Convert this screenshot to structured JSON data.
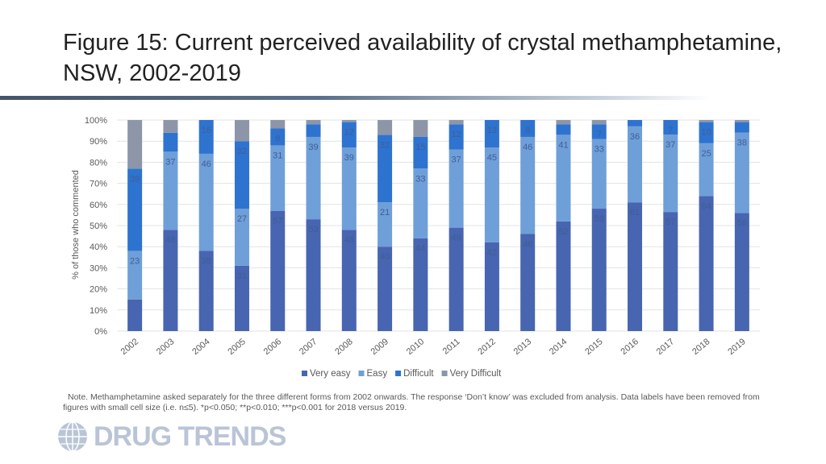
{
  "header": {
    "title": "Figure 15: Current perceived availability of crystal methamphetamine, NSW, 2002-2019"
  },
  "note": {
    "text": "Note. Methamphetamine asked separately for the three different forms from 2002 onwards. The response ‘Don’t know’ was excluded from analysis. Data labels have been removed from figures with small cell size (i.e. n≤5).  *p<0.050; **p<0.010; ***p<0.001 for 2018 versus 2019."
  },
  "logo": {
    "text": "DRUG TRENDS",
    "icon": "globe-icon"
  },
  "colors": {
    "very_easy": "#4765b0",
    "easy": "#6f9fd8",
    "difficult": "#2e73cf",
    "very_difficult": "#8c96a8",
    "label": "#3f5e98",
    "axis_text": "#595959",
    "grid": "#e3e3e3"
  },
  "chart_data": {
    "type": "bar",
    "stacked": true,
    "categories": [
      "2002",
      "2003",
      "2004",
      "2005",
      "2006",
      "2007",
      "2008",
      "2009",
      "2010",
      "2011",
      "2012",
      "2013",
      "2014",
      "2015",
      "2016",
      "2017",
      "2018",
      "2019"
    ],
    "ylabel": "% of those who commented",
    "xlabel": "",
    "ylim": [
      0,
      100
    ],
    "yticks": [
      "0%",
      "10%",
      "20%",
      "30%",
      "40%",
      "50%",
      "60%",
      "70%",
      "80%",
      "90%",
      "100%"
    ],
    "legend_position": "bottom",
    "series": [
      {
        "name": "Very easy",
        "color": "#4765b0",
        "values": [
          15,
          48,
          38,
          31,
          57,
          53,
          48,
          40,
          44,
          49,
          42,
          46,
          52,
          58,
          61,
          57,
          64,
          56
        ],
        "labels": [
          "",
          "48",
          "38",
          "31",
          "57",
          "53",
          "48",
          "40",
          "44",
          "49",
          "42",
          "46",
          "52",
          "58",
          "61",
          "57",
          "64",
          "56"
        ]
      },
      {
        "name": "Easy",
        "color": "#6f9fd8",
        "values": [
          23,
          37,
          46,
          27,
          31,
          39,
          39,
          21,
          33,
          37,
          45,
          46,
          41,
          33,
          36,
          37,
          25,
          38
        ],
        "labels": [
          "23",
          "37",
          "46",
          "27",
          "31",
          "39",
          "39",
          "21",
          "33",
          "37",
          "45",
          "46",
          "41",
          "33",
          "36",
          "37",
          "25",
          "38"
        ]
      },
      {
        "name": "Difficult",
        "color": "#2e73cf",
        "values": [
          39,
          9,
          16,
          32,
          8,
          6,
          12,
          32,
          15,
          12,
          13,
          8,
          5,
          7,
          3,
          7,
          10,
          5
        ],
        "labels": [
          "39",
          "",
          "16",
          "32",
          "8",
          "",
          "12",
          "32",
          "15",
          "12",
          "13",
          "8",
          "",
          "7",
          "",
          "7",
          "10",
          ""
        ]
      },
      {
        "name": "Very Difficult",
        "color": "#8c96a8",
        "values": [
          23,
          6,
          0,
          10,
          4,
          2,
          1,
          7,
          8,
          2,
          0,
          0,
          2,
          2,
          0,
          0,
          1,
          1
        ],
        "labels": [
          "",
          "",
          "",
          "",
          "",
          "",
          "",
          "",
          "",
          "",
          "",
          "",
          "",
          "",
          "",
          "",
          "",
          ""
        ]
      }
    ]
  }
}
